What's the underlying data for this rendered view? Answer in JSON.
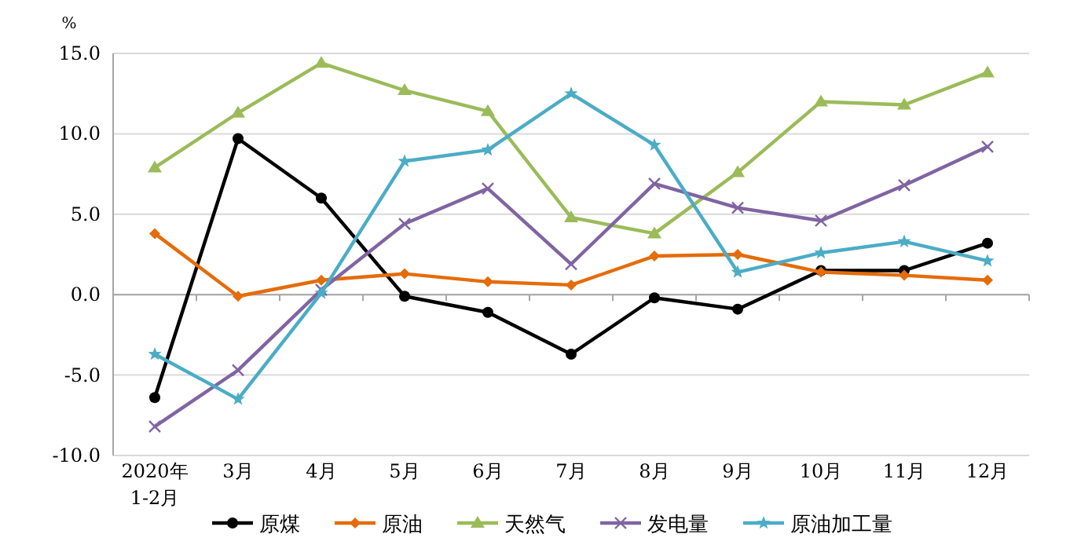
{
  "chart_data": {
    "type": "line",
    "ylabel": "%",
    "categories": [
      "2020年\n1-2月",
      "3月",
      "4月",
      "5月",
      "6月",
      "7月",
      "8月",
      "9月",
      "10月",
      "11月",
      "12月"
    ],
    "ylim": [
      -10,
      15
    ],
    "yticks": [
      {
        "value": -10,
        "label": "-10.0"
      },
      {
        "value": -5,
        "label": "-5.0"
      },
      {
        "value": 0,
        "label": "0.0"
      },
      {
        "value": 5,
        "label": "5.0"
      },
      {
        "value": 10,
        "label": "10.0"
      },
      {
        "value": 15,
        "label": "15.0"
      }
    ],
    "grid": "y",
    "legend": "bottom",
    "line_style": "solid",
    "series": [
      {
        "name": "原煤",
        "color": "#000000",
        "marker": "circle",
        "values": [
          -6.4,
          9.7,
          6.0,
          -0.1,
          -1.1,
          -3.7,
          -0.2,
          -0.9,
          1.5,
          1.5,
          3.2
        ]
      },
      {
        "name": "原油",
        "color": "#e46c0a",
        "marker": "diamond",
        "values": [
          3.8,
          -0.1,
          0.9,
          1.3,
          0.8,
          0.6,
          2.4,
          2.5,
          1.4,
          1.2,
          0.9
        ]
      },
      {
        "name": "天然气",
        "color": "#9bbb59",
        "marker": "triangle",
        "values": [
          7.9,
          11.3,
          14.4,
          12.7,
          11.4,
          4.8,
          3.8,
          7.6,
          12.0,
          11.8,
          13.8
        ]
      },
      {
        "name": "发电量",
        "color": "#8064a2",
        "marker": "cross",
        "values": [
          -8.2,
          -4.7,
          0.3,
          4.4,
          6.6,
          1.9,
          6.9,
          5.4,
          4.6,
          6.8,
          9.2
        ]
      },
      {
        "name": "原油加工量",
        "color": "#4bacc6",
        "marker": "star",
        "values": [
          -3.7,
          -6.5,
          0.1,
          8.3,
          9.0,
          12.5,
          9.3,
          1.4,
          2.6,
          3.3,
          2.1
        ]
      }
    ]
  }
}
